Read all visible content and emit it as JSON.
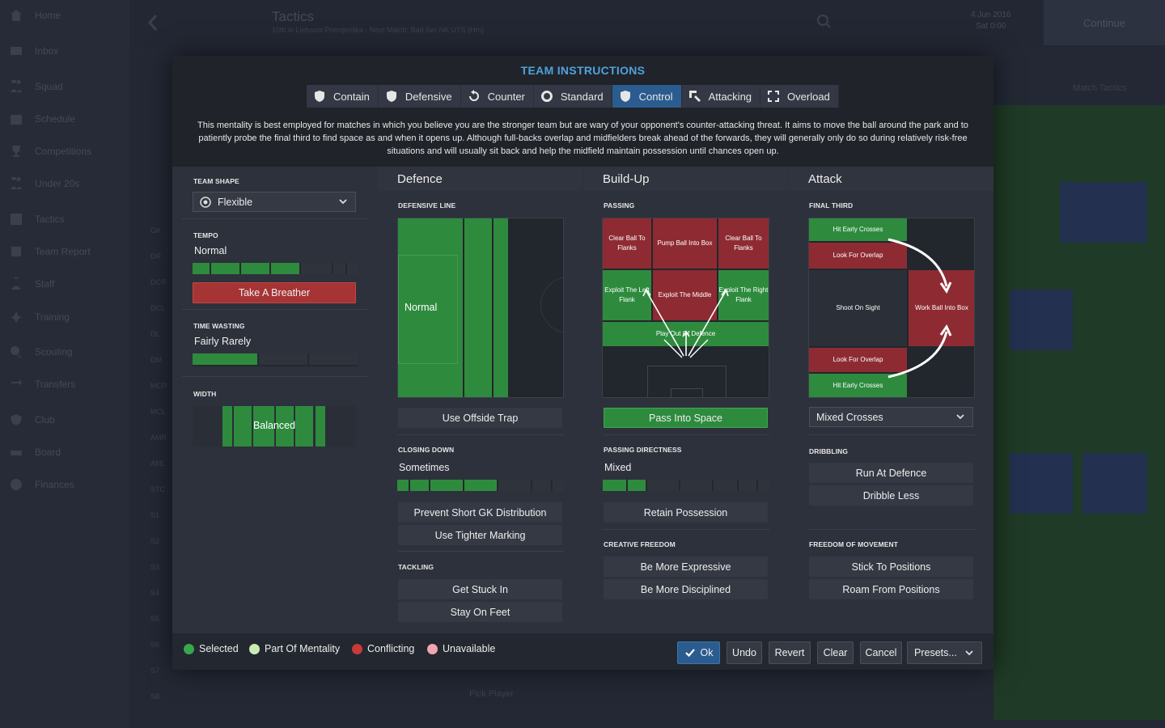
{
  "app": {
    "sidebar": [
      {
        "label": "Home",
        "icon": "home-icon"
      },
      {
        "label": "Inbox",
        "icon": "inbox-icon"
      },
      {
        "label": "Squad",
        "icon": "squad-icon"
      },
      {
        "label": "Schedule",
        "icon": "calendar-icon"
      },
      {
        "label": "Competitions",
        "icon": "trophy-icon"
      },
      {
        "label": "Under 20s",
        "icon": "squad-icon"
      },
      {
        "label": "Tactics",
        "icon": "tactics-icon"
      },
      {
        "label": "Team Report",
        "icon": "report-icon"
      },
      {
        "label": "Staff",
        "icon": "staff-icon"
      },
      {
        "label": "Training",
        "icon": "training-icon"
      },
      {
        "label": "Scouting",
        "icon": "search-icon"
      },
      {
        "label": "Transfers",
        "icon": "transfers-icon"
      },
      {
        "label": "Club",
        "icon": "club-icon"
      },
      {
        "label": "Board",
        "icon": "board-icon"
      },
      {
        "label": "Finances",
        "icon": "finances-icon"
      }
    ],
    "page_title": "Tactics",
    "page_subtitle": "10th in Lietuvos Premjeriška - Next Match: Bad Ser NK UTS (Hm)",
    "date_line1": "4 Jun 2016",
    "date_line2": "Sat 0:00",
    "continue_label": "Continue",
    "bg_match_tactics": "Match Tactics",
    "bg_positions": [
      "GK",
      "DR",
      "DCR",
      "DCL",
      "DL",
      "DM",
      "MCR",
      "MCL",
      "AMR",
      "AML",
      "STC",
      "S1",
      "S2",
      "S3",
      "S4",
      "S5",
      "S6",
      "S7",
      "S8"
    ],
    "bg_pick_player_1": "Pick Player",
    "bg_pick_player_2": "Pick Player"
  },
  "modal": {
    "title": "TEAM INSTRUCTIONS",
    "mentalities": [
      {
        "label": "Contain",
        "icon": "contain-icon",
        "active": false
      },
      {
        "label": "Defensive",
        "icon": "defensive-icon",
        "active": false
      },
      {
        "label": "Counter",
        "icon": "counter-icon",
        "active": false
      },
      {
        "label": "Standard",
        "icon": "standard-icon",
        "active": false
      },
      {
        "label": "Control",
        "icon": "control-icon",
        "active": true
      },
      {
        "label": "Attacking",
        "icon": "attacking-icon",
        "active": false
      },
      {
        "label": "Overload",
        "icon": "overload-icon",
        "active": false
      }
    ],
    "description": "This mentality is best employed for matches in which you believe you are the stronger team but are wary of your opponent's counter-attacking threat. It aims to move the ball around the park and to patiently probe the final third to find space as and when it opens up. Although full-backs overlap and midfielders break ahead of the forwards, they will generally only do so during relatively risk-free situations and will usually sit back and help the midfield maintain possession until chances open up.",
    "left": {
      "team_shape_label": "TEAM SHAPE",
      "team_shape_value": "Flexible",
      "tempo_label": "TEMPO",
      "tempo_value": "Normal",
      "tempo_level": 0.55,
      "take_breather_label": "Take A Breather",
      "time_wasting_label": "TIME WASTING",
      "time_wasting_value": "Fairly Rarely",
      "time_wasting_level": 0.4,
      "width_label": "WIDTH",
      "width_value": "Balanced"
    },
    "defence": {
      "title": "Defence",
      "defensive_line_label": "DEFENSIVE LINE",
      "defensive_line_value": "Normal",
      "offside_label": "Use Offside Trap",
      "closing_down_label": "CLOSING DOWN",
      "closing_down_value": "Sometimes",
      "closing_down_level": 0.5,
      "prevent_gk_label": "Prevent Short GK Distribution",
      "tighter_marking_label": "Use Tighter Marking",
      "tackling_label": "TACKLING",
      "get_stuck_in_label": "Get Stuck In",
      "stay_on_feet_label": "Stay On Feet"
    },
    "buildup": {
      "title": "Build-Up",
      "passing_label": "PASSING",
      "zones": {
        "clear_left": "Clear Ball To Flanks",
        "pump": "Pump Ball Into Box",
        "clear_right": "Clear Ball To Flanks",
        "exploit_left": "Exploit The Left Flank",
        "exploit_middle": "Exploit The Middle",
        "exploit_right": "Exploit The Right Flank",
        "play_out": "Play Out Of Defence"
      },
      "pass_into_space_label": "Pass Into Space",
      "directness_label": "PASSING DIRECTNESS",
      "directness_value": "Mixed",
      "directness_level": 0.35,
      "retain_label": "Retain Possession",
      "creative_label": "CREATIVE FREEDOM",
      "expressive_label": "Be More Expressive",
      "disciplined_label": "Be More Disciplined"
    },
    "attack": {
      "title": "Attack",
      "final_third_label": "FINAL THIRD",
      "zones": {
        "hit_early_top": "Hit Early Crosses",
        "overlap_top": "Look For Overlap",
        "shoot": "Shoot On Sight",
        "work_ball": "Work Ball Into Box",
        "overlap_bottom": "Look For Overlap",
        "hit_early_bottom": "Hit Early Crosses"
      },
      "crosses_value": "Mixed Crosses",
      "dribbling_label": "DRIBBLING",
      "run_at_label": "Run At Defence",
      "dribble_less_label": "Dribble Less",
      "freedom_label": "FREEDOM OF MOVEMENT",
      "stick_label": "Stick To Positions",
      "roam_label": "Roam From Positions"
    },
    "legend": [
      {
        "label": "Selected",
        "color": "#3aa64b"
      },
      {
        "label": "Part Of Mentality",
        "color": "#c8ebb8"
      },
      {
        "label": "Conflicting",
        "color": "#c83a3a"
      },
      {
        "label": "Unavailable",
        "color": "#f0a6b0"
      }
    ],
    "footer_buttons": {
      "ok": "Ok",
      "undo": "Undo",
      "revert": "Revert",
      "clear": "Clear",
      "cancel": "Cancel",
      "presets": "Presets..."
    }
  }
}
